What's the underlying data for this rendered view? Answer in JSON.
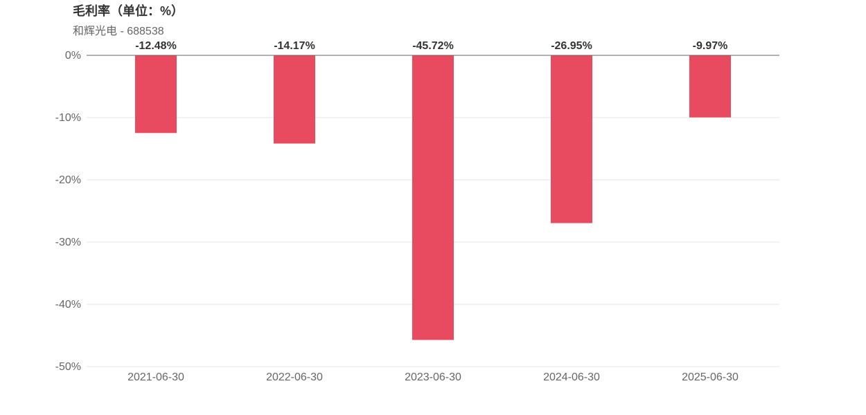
{
  "title": "毛利率（单位：%）",
  "subtitle": "和辉光电 - 688538",
  "colors": {
    "bar": "#e84b5f",
    "grid": "#e5e5e5",
    "axis": "#666666"
  },
  "chart_data": {
    "type": "bar",
    "title": "毛利率（单位：%）",
    "subtitle": "和辉光电 - 688538",
    "categories": [
      "2021-06-30",
      "2022-06-30",
      "2023-06-30",
      "2024-06-30",
      "2025-06-30"
    ],
    "values": [
      -12.48,
      -14.17,
      -45.72,
      -26.95,
      -9.97
    ],
    "value_labels": [
      "-12.48%",
      "-14.17%",
      "-45.72%",
      "-26.95%",
      "-9.97%"
    ],
    "ylim": [
      -50,
      0
    ],
    "yticks": [
      0,
      -10,
      -20,
      -30,
      -40,
      -50
    ],
    "ytick_labels": [
      "0%",
      "-10%",
      "-20%",
      "-30%",
      "-40%",
      "-50%"
    ],
    "xlabel": "",
    "ylabel": "",
    "grid": true
  }
}
